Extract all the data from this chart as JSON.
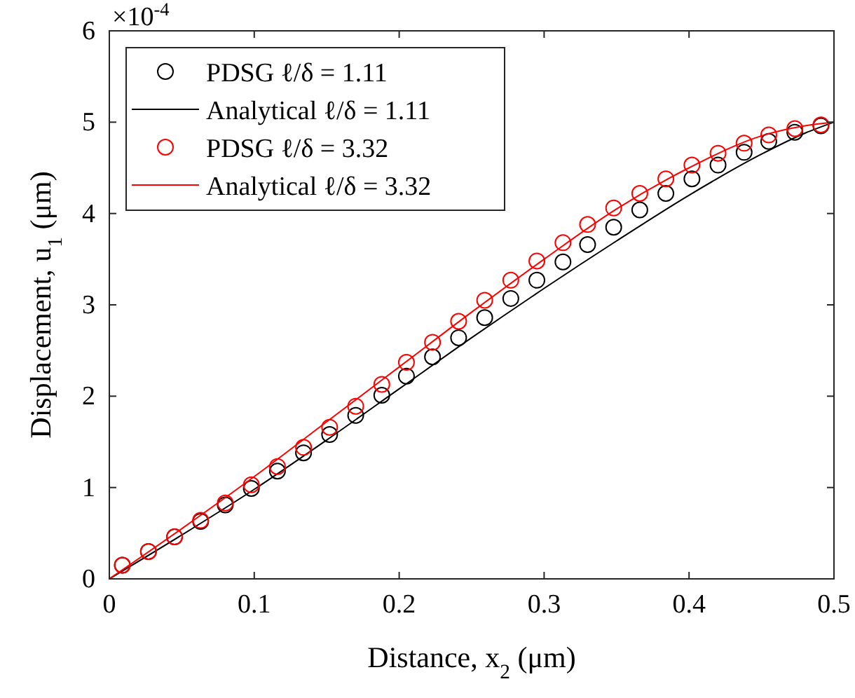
{
  "chart_data": {
    "type": "scatter",
    "xlabel": "Distance, x$_{2}$ (μm)",
    "ylabel": "Displacement, u$_{1}$ (μm)",
    "annotations": [
      "×10$^{-4}$"
    ],
    "xlim": [
      0,
      0.5
    ],
    "ylim": [
      0,
      6
    ],
    "xticks": [
      0,
      0.1,
      0.2,
      0.3,
      0.4,
      0.5
    ],
    "yticks": [
      0,
      1,
      2,
      3,
      4,
      5,
      6
    ],
    "grid": false,
    "legend": "top left",
    "series": [
      {
        "name": "PDSG ℓ/δ = 1.11",
        "marker": "circle",
        "color": "#000000",
        "x": [
          0.009,
          0.027,
          0.045,
          0.063,
          0.08,
          0.098,
          0.116,
          0.134,
          0.152,
          0.17,
          0.188,
          0.205,
          0.223,
          0.241,
          0.259,
          0.277,
          0.295,
          0.313,
          0.33,
          0.348,
          0.366,
          0.384,
          0.402,
          0.42,
          0.438,
          0.455,
          0.473,
          0.491
        ],
        "values": [
          0.15,
          0.3,
          0.46,
          0.63,
          0.81,
          0.99,
          1.18,
          1.38,
          1.58,
          1.79,
          2.01,
          2.22,
          2.43,
          2.64,
          2.86,
          3.07,
          3.27,
          3.47,
          3.66,
          3.85,
          4.04,
          4.22,
          4.38,
          4.53,
          4.67,
          4.79,
          4.89,
          4.96
        ]
      },
      {
        "name": "Analytical ℓ/δ = 1.11",
        "type": "line",
        "marker": "none",
        "line_style": "solid",
        "color": "#000000",
        "x": [
          0,
          0.05,
          0.1,
          0.15,
          0.2,
          0.25,
          0.3,
          0.35,
          0.4,
          0.45,
          0.48,
          0.5
        ],
        "values": [
          0,
          0.48,
          0.98,
          1.52,
          2.08,
          2.64,
          3.18,
          3.7,
          4.2,
          4.65,
          4.88,
          5.0
        ]
      },
      {
        "name": "PDSG ℓ/δ = 3.32",
        "marker": "circle",
        "color": "#ff0000",
        "x": [
          0.009,
          0.027,
          0.045,
          0.063,
          0.08,
          0.098,
          0.116,
          0.134,
          0.152,
          0.17,
          0.188,
          0.205,
          0.223,
          0.241,
          0.259,
          0.277,
          0.295,
          0.313,
          0.33,
          0.348,
          0.366,
          0.384,
          0.402,
          0.42,
          0.438,
          0.455,
          0.473,
          0.491
        ],
        "values": [
          0.15,
          0.3,
          0.46,
          0.64,
          0.83,
          1.03,
          1.23,
          1.44,
          1.66,
          1.89,
          2.13,
          2.37,
          2.59,
          2.82,
          3.05,
          3.27,
          3.48,
          3.68,
          3.88,
          4.06,
          4.22,
          4.38,
          4.53,
          4.66,
          4.77,
          4.86,
          4.93,
          4.97
        ]
      },
      {
        "name": "Analytical ℓ/δ = 3.32",
        "type": "line",
        "marker": "none",
        "line_style": "solid",
        "color": "#ff0000",
        "x": [
          0,
          0.05,
          0.1,
          0.15,
          0.2,
          0.25,
          0.3,
          0.35,
          0.4,
          0.45,
          0.48,
          0.5
        ],
        "values": [
          0,
          0.55,
          1.12,
          1.72,
          2.32,
          2.92,
          3.5,
          4.05,
          4.5,
          4.85,
          4.96,
          5.0
        ]
      }
    ]
  }
}
